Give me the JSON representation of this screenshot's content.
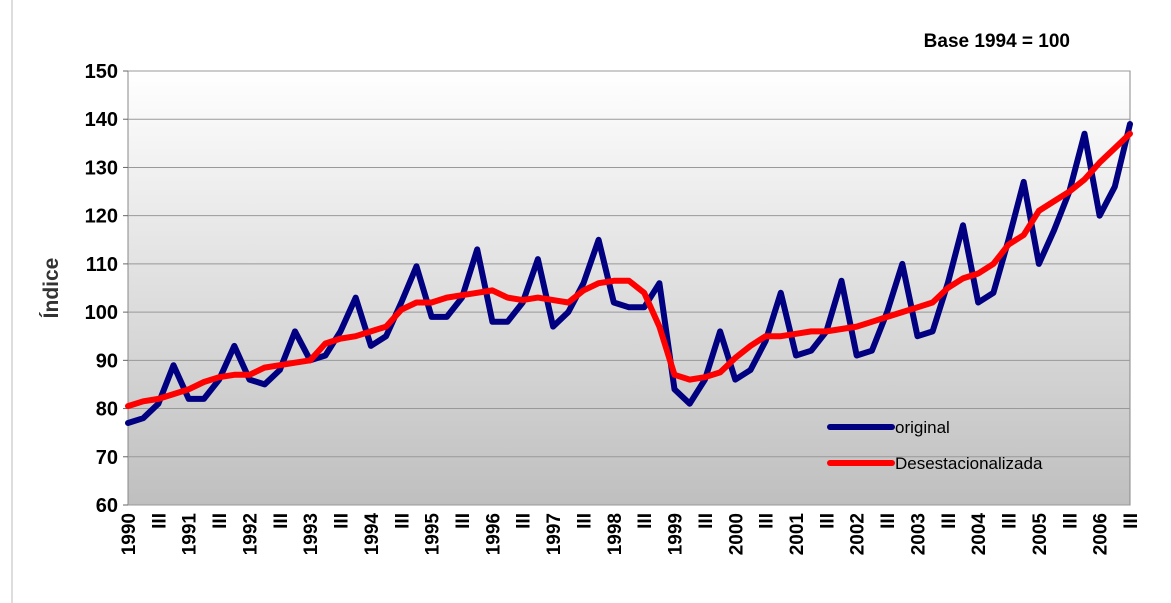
{
  "chart_data": {
    "type": "line",
    "title": "Base 1994 = 100",
    "ylabel": "Índice",
    "categories": [
      "1990",
      null,
      "III",
      null,
      "1991",
      null,
      "III",
      null,
      "1992",
      null,
      "III",
      null,
      "1993",
      null,
      "III",
      null,
      "1994",
      null,
      "III",
      null,
      "1995",
      null,
      "III",
      null,
      "1996",
      null,
      "III",
      null,
      "1997",
      null,
      "III",
      null,
      "1998",
      null,
      "III",
      null,
      "1999",
      null,
      "III",
      null,
      "2000",
      null,
      "III",
      null,
      "2001",
      null,
      "III",
      null,
      "2002",
      null,
      "III",
      null,
      "2003",
      null,
      "III",
      null,
      "2004",
      null,
      "III",
      null,
      "2005",
      null,
      "III",
      null,
      "2006",
      null,
      "III"
    ],
    "series": [
      {
        "name": "original",
        "color": "#000080",
        "values": [
          77,
          78,
          81,
          89,
          82,
          82,
          86,
          93,
          86,
          85,
          88,
          96,
          90,
          91,
          96,
          103,
          93,
          95,
          102,
          109.5,
          99,
          99,
          103,
          113,
          98,
          98,
          102,
          111,
          97,
          100,
          106,
          115,
          102,
          101,
          101,
          106,
          84,
          81,
          86,
          96,
          86,
          88,
          94,
          104,
          91,
          92,
          96,
          106.5,
          91,
          92,
          100,
          110,
          95,
          96,
          106,
          118,
          102,
          104,
          115,
          127,
          110,
          117,
          125,
          137,
          120,
          126,
          139
        ]
      },
      {
        "name": "Desestacionalizada",
        "color": "#ff0000",
        "values": [
          80.5,
          81.5,
          82,
          83,
          84,
          85.5,
          86.5,
          87,
          87,
          88.5,
          89,
          89.5,
          90,
          93.5,
          94.5,
          95,
          96,
          97,
          100.5,
          102,
          102,
          103,
          103.5,
          104,
          104.5,
          103,
          102.5,
          103,
          102.5,
          102,
          104.5,
          106,
          106.5,
          106.5,
          104,
          97,
          87,
          86,
          86.5,
          87.5,
          90.5,
          93,
          95,
          95,
          95.5,
          96,
          96,
          96.5,
          97,
          98,
          99,
          100,
          101,
          102,
          105,
          107,
          108,
          110,
          114,
          116,
          121,
          123,
          125,
          127.5,
          131,
          134,
          137
        ]
      }
    ],
    "ylim": [
      60,
      150
    ],
    "yticks": [
      60,
      70,
      80,
      90,
      100,
      110,
      120,
      130,
      140,
      150
    ],
    "grid": true
  }
}
